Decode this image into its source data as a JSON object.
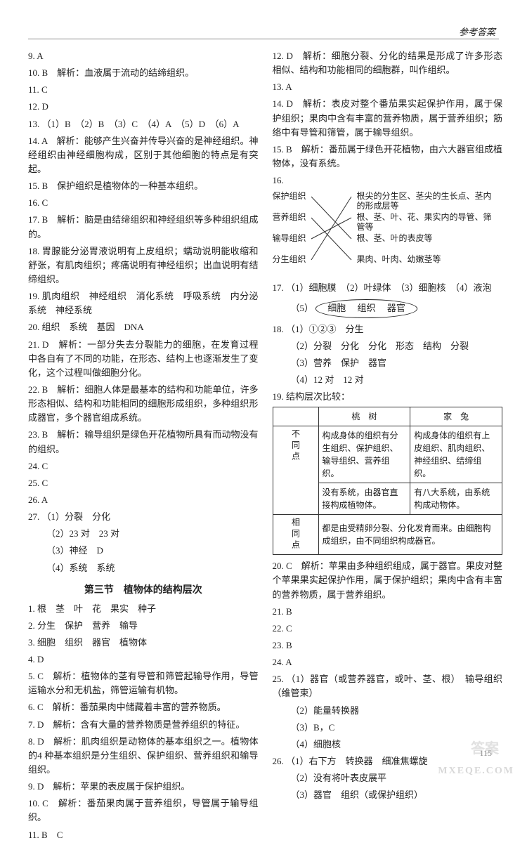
{
  "header": {
    "right": "参考答案"
  },
  "left": {
    "items": [
      {
        "n": "9.",
        "t": "A"
      },
      {
        "n": "10.",
        "t": "B　解析：血液属于流动的结缔组织。"
      },
      {
        "n": "11.",
        "t": "C"
      },
      {
        "n": "12.",
        "t": "D"
      },
      {
        "n": "13.",
        "t": "（1）B　（2）B　（3）C　（4）A　（5）D　（6）A"
      },
      {
        "n": "14.",
        "t": "A　解析：能够产生兴奋并传导兴奋的是神经组织。神经组织由神经细胞构成，区别于其他细胞的特点是有突起。"
      },
      {
        "n": "15.",
        "t": "B　保护组织是植物体的一种基本组织。"
      },
      {
        "n": "16.",
        "t": "C"
      },
      {
        "n": "17.",
        "t": "B　解析：脑是由结缔组织和神经组织等多种组织组成的。"
      },
      {
        "n": "18.",
        "t": "胃腺能分泌胃液说明有上皮组织；蠕动说明能收缩和舒张，有肌肉组织；疼痛说明有神经组织；出血说明有结缔组织。"
      },
      {
        "n": "19.",
        "t": "肌肉组织　神经组织　消化系统　呼吸系统　内分泌系统　神经系统"
      },
      {
        "n": "20.",
        "t": "组织　系统　基因　DNA"
      },
      {
        "n": "21.",
        "t": "D　解析：一部分失去分裂能力的细胞，在发育过程中各自有了不同的功能，在形态、结构上也逐渐发生了变化，这个过程叫做细胞分化。"
      },
      {
        "n": "22.",
        "t": "B　解析：细胞人体是最基本的结构和功能单位，许多形态相似、结构和功能相同的细胞形成组织，多种组织形成器官，多个器官组成系统。"
      },
      {
        "n": "23.",
        "t": "B　解析：输导组织是绿色开花植物所具有而动物没有的组织。"
      },
      {
        "n": "24.",
        "t": "C"
      },
      {
        "n": "25.",
        "t": "C"
      },
      {
        "n": "26.",
        "t": "A"
      },
      {
        "n": "27.",
        "t": "（1）分裂　分化"
      }
    ],
    "sub27": [
      "（2）23 对　23 对",
      "（3）神经　D",
      "（4）系统　系统"
    ],
    "sectionTitle": "第三节　植物体的结构层次",
    "items2": [
      {
        "n": "1.",
        "t": "根　茎　叶　花　果实　种子"
      },
      {
        "n": "2.",
        "t": "分生　保护　营养　输导"
      },
      {
        "n": "3.",
        "t": "细胞　组织　器官　植物体"
      },
      {
        "n": "4.",
        "t": "D"
      },
      {
        "n": "5.",
        "t": "C　解析：植物体的茎有导管和筛管起输导作用，导管运输水分和无机盐，筛管运输有机物。"
      },
      {
        "n": "6.",
        "t": "C　解析：番茄果肉中储藏着丰富的营养物质。"
      },
      {
        "n": "7.",
        "t": "D　解析：含有大量的营养物质是营养组织的特征。"
      },
      {
        "n": "8.",
        "t": "D　解析：肌肉组织是动物体的基本组织之一。植物体的4 种基本组织是分生组织、保护组织、营养组织和输导组织。"
      },
      {
        "n": "9.",
        "t": "D　解析：苹果的表皮属于保护组织。"
      },
      {
        "n": "10.",
        "t": "C　解析：番茄果肉属于营养组织，导管属于输导组织。"
      },
      {
        "n": "11.",
        "t": "B　C"
      }
    ]
  },
  "right": {
    "items": [
      {
        "n": "12.",
        "t": "D　解析：细胞分裂、分化的结果是形成了许多形态相似、结构和功能相同的细胞群，叫作组织。"
      },
      {
        "n": "13.",
        "t": "A"
      },
      {
        "n": "14.",
        "t": "D　解析：表皮对整个番茄果实起保护作用，属于保护组织；果肉中含有丰富的营养物质，属于营养组织；筋络中有导管和筛管，属于输导组织。"
      },
      {
        "n": "15.",
        "t": "B　解析：番茄属于绿色开花植物，由六大器官组成植物体，没有系统。"
      },
      {
        "n": "16.",
        "t": ""
      }
    ],
    "match": {
      "left": [
        "保护组织",
        "营养组织",
        "输导组织",
        "分生组织"
      ],
      "right": [
        "根尖的分生区、茎尖的生长点、茎内的形成层等",
        "根、茎、叶、花、果实内的导管、筛管等",
        "根、茎、叶的表皮等",
        "果肉、叶肉、幼嫩茎等"
      ]
    },
    "items2": [
      {
        "n": "17.",
        "t": "（1）细胞膜　（2）叶绿体　（3）细胞核　（4）液泡"
      }
    ],
    "oval": {
      "prefix": "（5）",
      "a": "细胞",
      "b": "组织",
      "c": "器官"
    },
    "items3": [
      {
        "n": "18.",
        "t": "（1）①②③　分生"
      }
    ],
    "sub18": [
      "（2）分裂　分化　分化　形态　结构　分裂",
      "（3）营养　保护　器官",
      "（4）12 对　12 对"
    ],
    "q19": "19. 结构层次比较：",
    "table": {
      "headers": [
        "",
        "桃　树",
        "家　兔"
      ],
      "rows": [
        {
          "head": "不同点",
          "a": "构成身体的组织有分生组织、保护组织、输导组织、营养组织。",
          "b": "构成身体的组织有上皮组织、肌肉组织、神经组织、结缔组织。"
        },
        {
          "head": "",
          "a": "没有系统，由器官直接构成植物体。",
          "b": "有八大系统，由系统构成动物体。"
        },
        {
          "head": "相同点",
          "span": "都是由受精卵分裂、分化发育而来。由细胞构成组织，由不同组织构成器官。"
        }
      ]
    },
    "items4": [
      {
        "n": "20.",
        "t": "C　解析：苹果由多种组织组成，属于器官。果皮对整个苹果果实起保护作用，属于保护组织；果肉中含有丰富的营养物质，属于营养组织。"
      },
      {
        "n": "21.",
        "t": "B"
      },
      {
        "n": "22.",
        "t": "C"
      },
      {
        "n": "23.",
        "t": "B"
      },
      {
        "n": "24.",
        "t": "A"
      },
      {
        "n": "25.",
        "t": "（1）器官（或营养器官，或叶、茎、根）　输导组织（维管束）"
      }
    ],
    "sub25": [
      "（2）能量转换器",
      "（3）B，C",
      "（4）细胞核"
    ],
    "items5": [
      {
        "n": "26.",
        "t": "（1）右下方　转换器　细准焦螺旋"
      }
    ],
    "sub26": [
      "（2）没有将叶表皮展平",
      "（3）器官　组织（或保护组织）"
    ]
  },
  "footer": {
    "pagenum": "115",
    "wm1": "MXEQE.COM",
    "wm2": "答案"
  }
}
